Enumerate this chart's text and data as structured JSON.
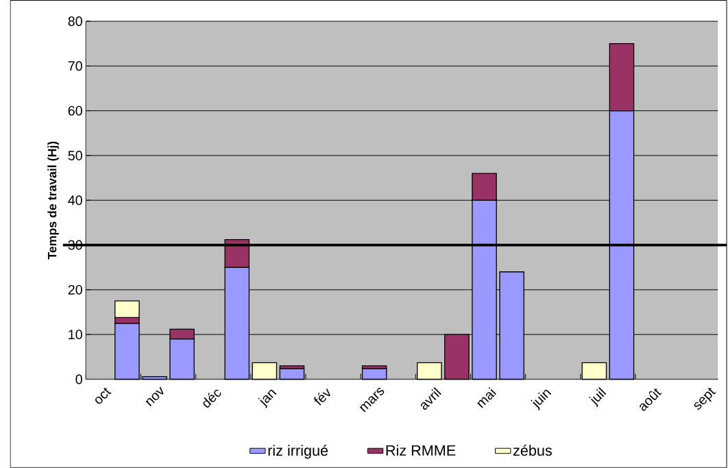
{
  "chart_data": {
    "type": "bar",
    "stacked": true,
    "ylabel": "Temps de travail (Hj)",
    "categories": [
      "oct",
      null,
      "nov",
      null,
      "déc",
      null,
      "jan",
      null,
      "fév",
      null,
      "mars",
      null,
      "avril",
      null,
      "mai",
      null,
      "juin",
      null,
      "juil",
      null,
      "août",
      null,
      "sept"
    ],
    "series": [
      {
        "name": "riz irrigué",
        "color": "#9999ff",
        "values": [
          null,
          12.5,
          0.6,
          9,
          null,
          25,
          null,
          2.4,
          null,
          null,
          2.4,
          null,
          null,
          null,
          40,
          24,
          null,
          null,
          null,
          60,
          null,
          null,
          null
        ]
      },
      {
        "name": "Riz RMME",
        "color": "#993366",
        "values": [
          null,
          1.3,
          null,
          2.2,
          null,
          6.2,
          null,
          0.6,
          null,
          null,
          0.6,
          null,
          null,
          10,
          6,
          null,
          null,
          null,
          null,
          15,
          null,
          null,
          null
        ]
      },
      {
        "name": "zébus",
        "color": "#ffffcc",
        "values": [
          null,
          3.7,
          null,
          null,
          null,
          null,
          3.7,
          null,
          null,
          null,
          null,
          null,
          3.7,
          null,
          null,
          null,
          null,
          null,
          3.7,
          null,
          null,
          null,
          null
        ]
      }
    ],
    "ylim": [
      0,
      80
    ],
    "yticks": [
      0,
      10,
      20,
      30,
      40,
      50,
      60,
      70,
      80
    ],
    "grid": "y",
    "legend": "bottom",
    "ref_lines": [
      {
        "axis": "y",
        "value": 30,
        "color": "#000000"
      }
    ]
  }
}
